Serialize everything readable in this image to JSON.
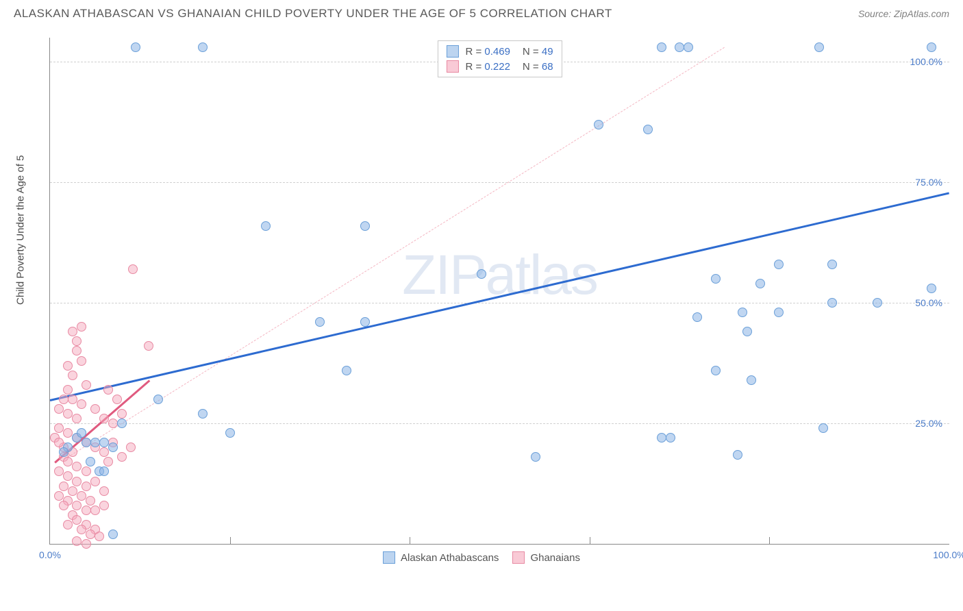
{
  "title": "ALASKAN ATHABASCAN VS GHANAIAN CHILD POVERTY UNDER THE AGE OF 5 CORRELATION CHART",
  "source": "Source: ZipAtlas.com",
  "ylabel": "Child Poverty Under the Age of 5",
  "watermark": "ZIPatlas",
  "chart": {
    "type": "scatter",
    "xlim": [
      0,
      100
    ],
    "ylim": [
      0,
      105
    ],
    "xticks": [
      {
        "v": 0,
        "label": "0.0%"
      },
      {
        "v": 100,
        "label": "100.0%"
      }
    ],
    "yticks": [
      {
        "v": 25,
        "label": "25.0%"
      },
      {
        "v": 50,
        "label": "50.0%"
      },
      {
        "v": 75,
        "label": "75.0%"
      },
      {
        "v": 100,
        "label": "100.0%"
      }
    ],
    "gridlines_v": [
      20,
      40,
      60,
      80
    ],
    "background": "#ffffff",
    "gridline_color": "#d0d0d0",
    "axis_color": "#888888"
  },
  "series": [
    {
      "id": "athabascan",
      "label": "Alaskan Athabascans",
      "color_fill": "rgba(140, 180, 230, 0.55)",
      "color_stroke": "#6a9fd8",
      "swatch_fill": "#bcd4f0",
      "swatch_border": "#6a9fd8",
      "marker_size": 14,
      "R": "0.469",
      "N": "49",
      "trend": {
        "x1": 0,
        "y1": 30,
        "x2": 100,
        "y2": 73,
        "color": "#2d6bd0",
        "width": 2.5,
        "dash": false
      },
      "trend_dash": {
        "x1": 2,
        "y1": 18,
        "x2": 75,
        "y2": 103,
        "color": "#f4b6c2"
      },
      "points": [
        [
          9.5,
          103
        ],
        [
          17,
          103
        ],
        [
          68,
          103
        ],
        [
          70,
          103
        ],
        [
          71,
          103
        ],
        [
          85.5,
          103
        ],
        [
          98,
          103
        ],
        [
          61,
          87
        ],
        [
          66.5,
          86
        ],
        [
          24,
          66
        ],
        [
          35,
          66
        ],
        [
          48,
          56
        ],
        [
          81,
          58
        ],
        [
          87,
          58
        ],
        [
          74,
          55
        ],
        [
          79,
          54
        ],
        [
          98,
          53
        ],
        [
          92,
          50
        ],
        [
          87,
          50
        ],
        [
          81,
          48
        ],
        [
          77,
          48
        ],
        [
          30,
          46
        ],
        [
          35,
          46
        ],
        [
          72,
          47
        ],
        [
          77.5,
          44
        ],
        [
          33,
          36
        ],
        [
          74,
          36
        ],
        [
          12,
          30
        ],
        [
          78,
          34
        ],
        [
          17,
          27
        ],
        [
          20,
          23
        ],
        [
          86,
          24
        ],
        [
          68,
          22
        ],
        [
          69,
          22
        ],
        [
          76.5,
          18.5
        ],
        [
          54,
          18
        ],
        [
          4,
          21
        ],
        [
          5,
          21
        ],
        [
          6,
          21
        ],
        [
          7,
          20
        ],
        [
          8,
          25
        ],
        [
          5.5,
          15
        ],
        [
          6,
          15
        ],
        [
          7,
          2
        ],
        [
          2,
          20
        ],
        [
          3,
          22
        ],
        [
          3.5,
          23
        ],
        [
          4.5,
          17
        ],
        [
          1.5,
          19
        ]
      ]
    },
    {
      "id": "ghanaian",
      "label": "Ghanaians",
      "color_fill": "rgba(245, 170, 190, 0.5)",
      "color_stroke": "#e889a2",
      "swatch_fill": "#f9cad6",
      "swatch_border": "#e889a2",
      "marker_size": 14,
      "R": "0.222",
      "N": "68",
      "trend": {
        "x1": 0.5,
        "y1": 17,
        "x2": 11,
        "y2": 34,
        "color": "#e05a7f",
        "width": 2.5,
        "dash": false
      },
      "points": [
        [
          9.2,
          57
        ],
        [
          11,
          41
        ],
        [
          2.5,
          44
        ],
        [
          3,
          42
        ],
        [
          3.5,
          45
        ],
        [
          3,
          40
        ],
        [
          3.5,
          38
        ],
        [
          2,
          37
        ],
        [
          2.5,
          35
        ],
        [
          4,
          33
        ],
        [
          2,
          32
        ],
        [
          1.5,
          30
        ],
        [
          2.5,
          30
        ],
        [
          3.5,
          29
        ],
        [
          1,
          28
        ],
        [
          2,
          27
        ],
        [
          3,
          26
        ],
        [
          6.5,
          32
        ],
        [
          7.5,
          30
        ],
        [
          5,
          28
        ],
        [
          6,
          26
        ],
        [
          7,
          25
        ],
        [
          8,
          27
        ],
        [
          1,
          24
        ],
        [
          2,
          23
        ],
        [
          3,
          22
        ],
        [
          4,
          21
        ],
        [
          5,
          20
        ],
        [
          1.5,
          20
        ],
        [
          2.5,
          19
        ],
        [
          0.5,
          22
        ],
        [
          1,
          21
        ],
        [
          1.5,
          18
        ],
        [
          2,
          17
        ],
        [
          3,
          16
        ],
        [
          4,
          15
        ],
        [
          6,
          19
        ],
        [
          7,
          21
        ],
        [
          8,
          18
        ],
        [
          9,
          20
        ],
        [
          6.5,
          17
        ],
        [
          1,
          15
        ],
        [
          2,
          14
        ],
        [
          3,
          13
        ],
        [
          4,
          12
        ],
        [
          1.5,
          12
        ],
        [
          2.5,
          11
        ],
        [
          5,
          13
        ],
        [
          6,
          11
        ],
        [
          3.5,
          10
        ],
        [
          4.5,
          9
        ],
        [
          2,
          9
        ],
        [
          3,
          8
        ],
        [
          1,
          10
        ],
        [
          1.5,
          8
        ],
        [
          4,
          7
        ],
        [
          5,
          7
        ],
        [
          6,
          8
        ],
        [
          2.5,
          6
        ],
        [
          3,
          5
        ],
        [
          4,
          4
        ],
        [
          5,
          3
        ],
        [
          2,
          4
        ],
        [
          3.5,
          3
        ],
        [
          4.5,
          2
        ],
        [
          5.5,
          1.5
        ],
        [
          3,
          0.5
        ],
        [
          4,
          0
        ]
      ]
    }
  ],
  "legend_top": {
    "R_label": "R =",
    "N_label": "N ="
  }
}
